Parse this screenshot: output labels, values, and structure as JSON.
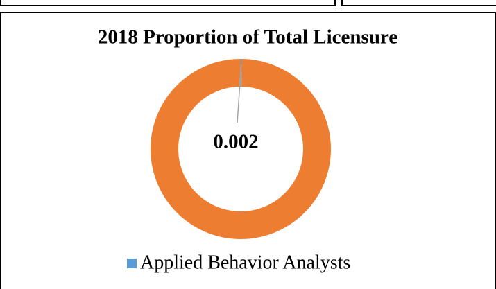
{
  "chart_data": {
    "type": "donut",
    "title": "2018 Proportion of Total Licensure",
    "categories": [
      "Applied Behavior Analysts",
      null
    ],
    "values": [
      0.002,
      0.998
    ],
    "colors": [
      "#5b9bd5",
      "#ed7d31"
    ],
    "legend": "bottom"
  }
}
